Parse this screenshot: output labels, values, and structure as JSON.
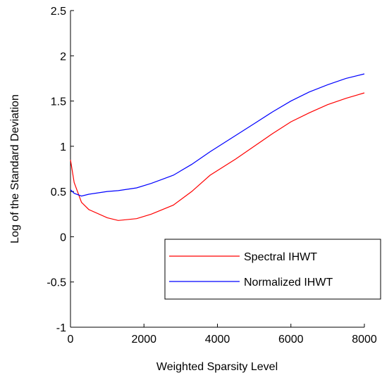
{
  "chart_data": {
    "type": "line",
    "x_label": "Weighted Sparsity Level",
    "y_label": "Log of the Standard Deviation",
    "x": [
      0,
      100,
      300,
      500,
      1000,
      1300,
      1800,
      2200,
      2800,
      3300,
      3800,
      4500,
      5000,
      5500,
      6000,
      6500,
      7000,
      7500,
      8000
    ],
    "series": [
      {
        "name": "Spectral IHWT",
        "color": "#ff0000",
        "values": [
          0.85,
          0.6,
          0.38,
          0.3,
          0.21,
          0.18,
          0.2,
          0.25,
          0.35,
          0.5,
          0.68,
          0.86,
          1.0,
          1.14,
          1.27,
          1.37,
          1.46,
          1.53,
          1.59
        ]
      },
      {
        "name": "Normalized IHWT",
        "color": "#0000ff",
        "values": [
          0.52,
          0.48,
          0.45,
          0.47,
          0.5,
          0.51,
          0.54,
          0.59,
          0.68,
          0.8,
          0.94,
          1.12,
          1.25,
          1.38,
          1.5,
          1.6,
          1.68,
          1.75,
          1.8
        ]
      }
    ],
    "xlim": [
      0,
      8000
    ],
    "xticks": [
      0,
      2000,
      4000,
      6000,
      8000
    ],
    "ylim": [
      -1,
      2.5
    ],
    "yticks": [
      -1,
      -0.5,
      0,
      0.5,
      1,
      1.5,
      2,
      2.5
    ],
    "legend": "lower right"
  }
}
